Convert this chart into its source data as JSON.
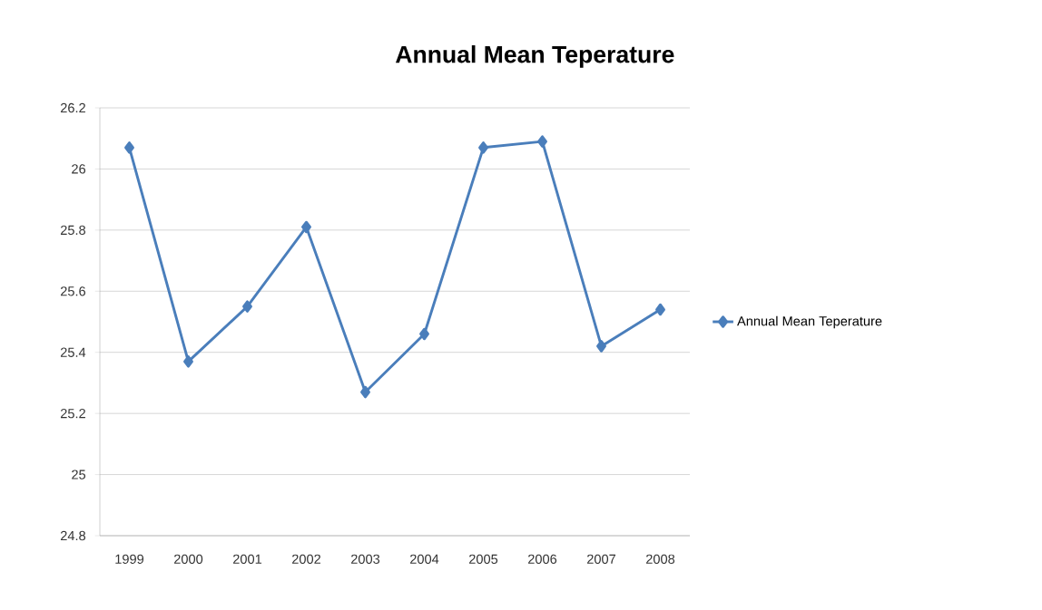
{
  "chart_data": {
    "type": "line",
    "title": "Annual Mean Teperature",
    "categories": [
      "1999",
      "2000",
      "2001",
      "2002",
      "2003",
      "2004",
      "2005",
      "2006",
      "2007",
      "2008"
    ],
    "series": [
      {
        "name": "Annual Mean Teperature",
        "color": "#4a7ebb",
        "values": [
          26.07,
          25.37,
          25.55,
          25.81,
          25.27,
          25.46,
          26.07,
          26.09,
          25.42,
          25.54
        ]
      }
    ],
    "ylim": [
      24.8,
      26.2
    ],
    "yticks": [
      24.8,
      25,
      25.2,
      25.4,
      25.6,
      25.8,
      26,
      26.2
    ],
    "grid": "y",
    "legend": "right",
    "marker": "diamond",
    "line_style": "solid"
  }
}
